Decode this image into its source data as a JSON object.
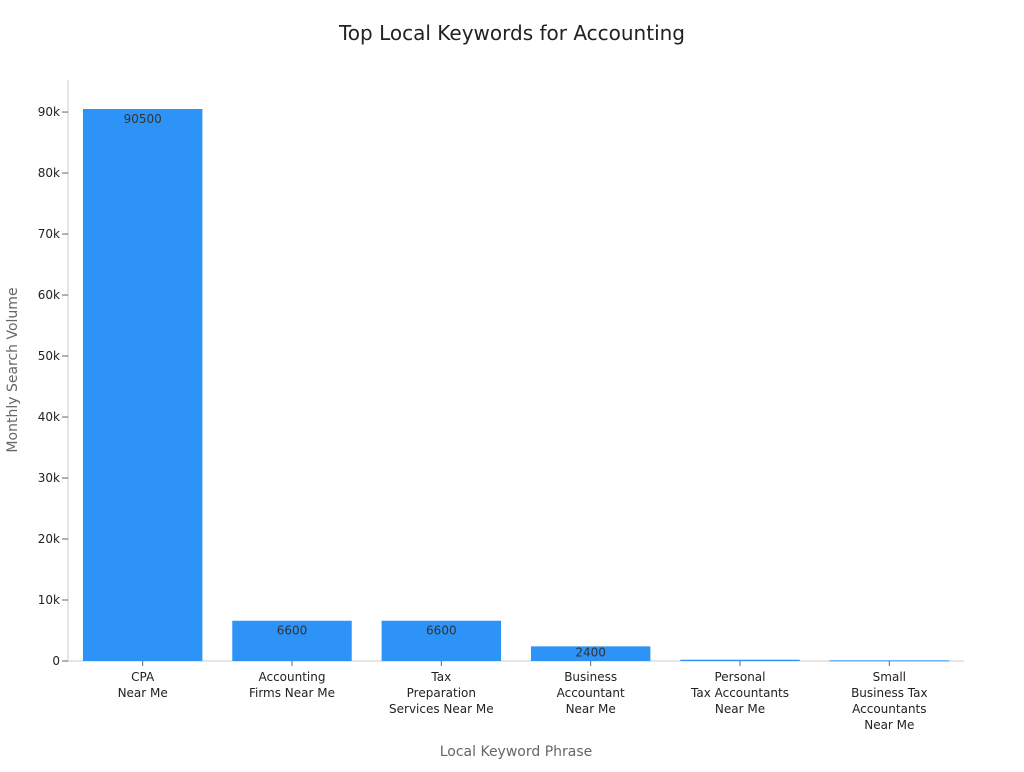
{
  "chart_data": {
    "type": "bar",
    "title": "Top Local Keywords for Accounting",
    "xlabel": "Local Keyword Phrase",
    "ylabel": "Monthly Search Volume",
    "categories": [
      [
        "CPA",
        "Near Me"
      ],
      [
        "Accounting",
        "Firms Near Me"
      ],
      [
        "Tax",
        "Preparation",
        "Services Near Me"
      ],
      [
        "Business",
        "Accountant",
        "Near Me"
      ],
      [
        "Personal",
        "Tax Accountants",
        "Near Me"
      ],
      [
        "Small",
        "Business Tax",
        "Accountants",
        "Near Me"
      ]
    ],
    "values": [
      90500,
      6600,
      6600,
      2400,
      210,
      110
    ],
    "data_labels": [
      "90500",
      "6600",
      "6600",
      "2400",
      "",
      ""
    ],
    "ylim": [
      0,
      95000
    ],
    "yticks": [
      0,
      10000,
      20000,
      30000,
      40000,
      50000,
      60000,
      70000,
      80000,
      90000
    ],
    "ytick_labels": [
      "0",
      "10k",
      "20k",
      "30k",
      "40k",
      "50k",
      "60k",
      "70k",
      "80k",
      "90k"
    ],
    "bar_color": "#2d93f7",
    "grid": false,
    "legend": "none"
  }
}
